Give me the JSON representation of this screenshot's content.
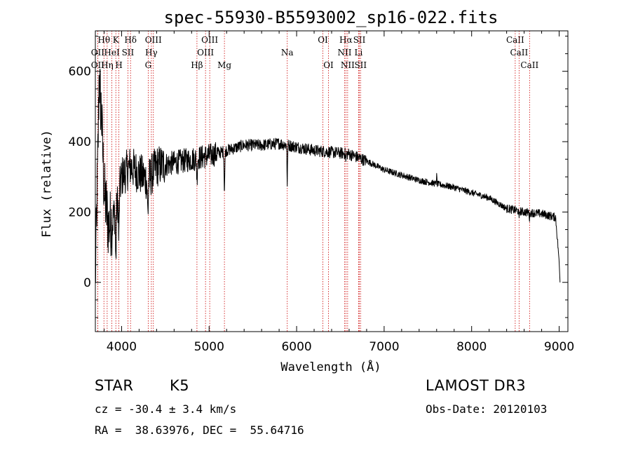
{
  "chart_data": {
    "type": "line",
    "title": "spec-55930-B5593002_sp16-022.fits",
    "xlabel": "Wavelength (Å)",
    "ylabel": "Flux (relative)",
    "xlim": [
      3700,
      9100
    ],
    "ylim": [
      -140,
      715
    ],
    "xticks": [
      4000,
      5000,
      6000,
      7000,
      8000,
      9000
    ],
    "yticks": [
      0,
      200,
      400,
      600
    ],
    "line_color": "#000000",
    "marker_color": "#cc0000",
    "spectrum_anchors": [
      [
        3700,
        0
      ],
      [
        3720,
        250
      ],
      [
        3745,
        560
      ],
      [
        3770,
        480
      ],
      [
        3800,
        260
      ],
      [
        3850,
        160
      ],
      [
        3900,
        180
      ],
      [
        3950,
        220
      ],
      [
        4000,
        300
      ],
      [
        4100,
        330
      ],
      [
        4200,
        310
      ],
      [
        4300,
        290
      ],
      [
        4400,
        330
      ],
      [
        4600,
        340
      ],
      [
        4800,
        350
      ],
      [
        5000,
        360
      ],
      [
        5200,
        375
      ],
      [
        5400,
        390
      ],
      [
        5600,
        390
      ],
      [
        5800,
        395
      ],
      [
        6000,
        385
      ],
      [
        6200,
        375
      ],
      [
        6400,
        370
      ],
      [
        6600,
        365
      ],
      [
        6800,
        345
      ],
      [
        7000,
        320
      ],
      [
        7200,
        305
      ],
      [
        7400,
        290
      ],
      [
        7600,
        280
      ],
      [
        7800,
        270
      ],
      [
        8000,
        255
      ],
      [
        8200,
        240
      ],
      [
        8400,
        210
      ],
      [
        8600,
        200
      ],
      [
        8800,
        195
      ],
      [
        8960,
        185
      ],
      [
        9000,
        60
      ],
      [
        9010,
        0
      ]
    ],
    "absorption_features": [
      {
        "x": 3934,
        "depth": 150,
        "width": 6
      },
      {
        "x": 3969,
        "depth": 130,
        "width": 6
      },
      {
        "x": 4300,
        "depth": 90,
        "width": 8
      },
      {
        "x": 4861,
        "depth": 60,
        "width": 5
      },
      {
        "x": 5175,
        "depth": 110,
        "width": 6
      },
      {
        "x": 5893,
        "depth": 120,
        "width": 4
      },
      {
        "x": 6563,
        "depth": 25,
        "width": 4
      },
      {
        "x": 8542,
        "depth": 25,
        "width": 4
      },
      {
        "x": 8662,
        "depth": 20,
        "width": 4
      }
    ],
    "emission_features": [
      {
        "x": 3742,
        "height": 50,
        "width": 6
      },
      {
        "x": 7600,
        "height": 22,
        "width": 4
      }
    ],
    "line_markers": [
      {
        "label": "Hθ",
        "x": 3798,
        "row": 0
      },
      {
        "label": "K",
        "x": 3934,
        "row": 0
      },
      {
        "label": "Hδ",
        "x": 4102,
        "row": 0
      },
      {
        "label": "OIII",
        "x": 4363,
        "row": 0
      },
      {
        "label": "OIII",
        "x": 5007,
        "row": 0
      },
      {
        "label": "OI",
        "x": 6300,
        "row": 0
      },
      {
        "label": "Hα",
        "x": 6563,
        "row": 0
      },
      {
        "label": "SII",
        "x": 6717,
        "row": 0
      },
      {
        "label": "CaII",
        "x": 8498,
        "row": 0
      },
      {
        "label": "OII",
        "x": 3727,
        "row": 1
      },
      {
        "label": "HeI",
        "x": 3889,
        "row": 1
      },
      {
        "label": "SII",
        "x": 4072,
        "row": 1
      },
      {
        "label": "Hγ",
        "x": 4340,
        "row": 1
      },
      {
        "label": "OIII",
        "x": 4959,
        "row": 1
      },
      {
        "label": "Na",
        "x": 5893,
        "row": 1
      },
      {
        "label": "NII",
        "x": 6548,
        "row": 1
      },
      {
        "label": "Li",
        "x": 6708,
        "row": 1
      },
      {
        "label": "CaII",
        "x": 8542,
        "row": 1
      },
      {
        "label": "OII",
        "x": 3727,
        "row": 2
      },
      {
        "label": "Hη",
        "x": 3835,
        "row": 2
      },
      {
        "label": "H",
        "x": 3969,
        "row": 2
      },
      {
        "label": "G",
        "x": 4304,
        "row": 2
      },
      {
        "label": "Hβ",
        "x": 4861,
        "row": 2
      },
      {
        "label": "Mg",
        "x": 5175,
        "row": 2
      },
      {
        "label": "OI",
        "x": 6364,
        "row": 2
      },
      {
        "label": "NII",
        "x": 6583,
        "row": 2
      },
      {
        "label": "SII",
        "x": 6731,
        "row": 2
      },
      {
        "label": "CaII",
        "x": 8662,
        "row": 2
      }
    ]
  },
  "info": {
    "class": "STAR",
    "subclass": "K5",
    "survey": "LAMOST DR3",
    "cz": "cz = -30.4 ± 3.4 km/s",
    "obs_date": "Obs-Date: 20120103",
    "coords": "RA =  38.63976, DEC =  55.64716"
  }
}
